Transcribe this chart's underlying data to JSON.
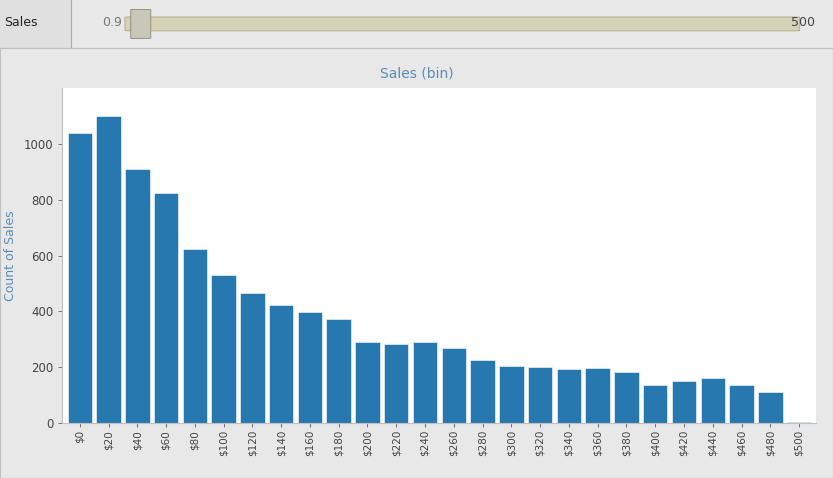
{
  "title": "Sales (bin)",
  "ylabel": "Count of Sales",
  "bar_color": "#2878b0",
  "background_color": "#ffffff",
  "outer_bg_color": "#e8e8e8",
  "title_area_color": "#ffffff",
  "categories": [
    "$0",
    "$20",
    "$40",
    "$60",
    "$80",
    "$100",
    "$120",
    "$140",
    "$160",
    "$180",
    "$200",
    "$220",
    "$240",
    "$260",
    "$280",
    "$300",
    "$320",
    "$340",
    "$360",
    "$380",
    "$400",
    "$420",
    "$440",
    "$460",
    "$480",
    "$500"
  ],
  "values": [
    1040,
    1100,
    910,
    825,
    625,
    530,
    465,
    425,
    398,
    372,
    290,
    283,
    290,
    270,
    225,
    204,
    200,
    195,
    197,
    183,
    138,
    150,
    160,
    135,
    110,
    5
  ],
  "ylim": [
    0,
    1200
  ],
  "yticks": [
    0,
    200,
    400,
    600,
    800,
    1000
  ],
  "slider_label": "Sales",
  "slider_min": "0.9",
  "slider_max": "500",
  "title_color": "#5b8db8",
  "axis_label_color": "#5b8db8",
  "tick_color": "#444444",
  "slider_track_color": "#d6d2b8",
  "slider_bg_color": "#d8d8d8",
  "border_color": "#c0c0c0"
}
